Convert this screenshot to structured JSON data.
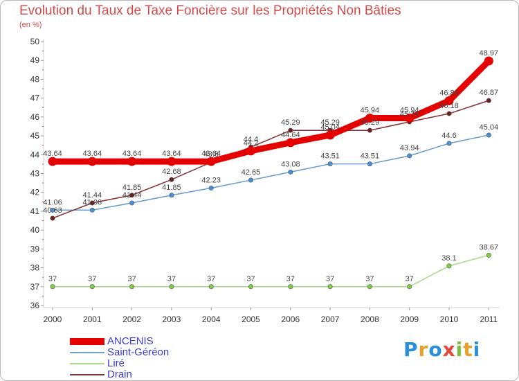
{
  "header": {
    "title": "Evolution du Taux de Taxe Foncière sur les Propriétés Non Bâties",
    "unit": "(en %)"
  },
  "colors": {
    "title": "#d44a4a",
    "legend_text": "#3b3bd6",
    "axis": "#d0d0d0"
  },
  "logo": {
    "text": "Proxiti"
  },
  "chart_data": {
    "type": "line",
    "title": "Evolution du Taux de Taxe Foncière sur les Propriétés Non Bâties",
    "ylabel": "(en %)",
    "xlabel": "",
    "x": [
      2000,
      2001,
      2002,
      2003,
      2004,
      2005,
      2006,
      2007,
      2008,
      2009,
      2010,
      2011
    ],
    "x_labels": [
      "2000",
      "2001",
      "2002",
      "2003",
      "2004",
      "2005",
      "2006",
      "2007",
      "2008",
      "2009",
      "2010",
      "2011"
    ],
    "ylim": [
      36,
      50
    ],
    "yticks": [
      "36",
      "37",
      "38",
      "39",
      "40",
      "41",
      "42",
      "43",
      "44",
      "45",
      "46",
      "47",
      "48",
      "49",
      "50"
    ],
    "grid": false,
    "legend": "bottom-left",
    "series": [
      {
        "name": "ANCENIS",
        "color": "#e50000",
        "point_color": "#e50000",
        "values": [
          43.64,
          43.64,
          43.64,
          43.64,
          43.64,
          44.2,
          44.64,
          45.04,
          45.94,
          45.94,
          46.86,
          48.97
        ],
        "labels": [
          "43.64",
          "43.64",
          "43.64",
          "43.64",
          "43.64",
          "44.2",
          "44.64",
          "45.04",
          "45.94",
          "45.94",
          "46.86",
          "48.97"
        ]
      },
      {
        "name": "Saint-Géréon",
        "color": "#6f9fcb",
        "point_color": "#4a90d9",
        "values": [
          41.06,
          41.06,
          41.44,
          41.85,
          42.23,
          42.65,
          43.08,
          43.51,
          43.51,
          43.94,
          44.6,
          45.04
        ],
        "labels": [
          "41.06",
          "41.06",
          "41.44",
          "41.85",
          "42.23",
          "42.65",
          "43.08",
          "43.51",
          "43.51",
          "43.94",
          "44.6",
          "45.04"
        ]
      },
      {
        "name": "Liré",
        "color": "#a9dc8a",
        "point_color": "#7fcf3f",
        "values": [
          37,
          37,
          37,
          37,
          37,
          37,
          37,
          37,
          37,
          37,
          38.1,
          38.67
        ],
        "labels": [
          "37",
          "37",
          "37",
          "37",
          "37",
          "37",
          "37",
          "37",
          "37",
          "37",
          "38.1",
          "38.67"
        ]
      },
      {
        "name": "Drain",
        "color": "#8a3a3a",
        "point_color": "#6a1f1f",
        "values": [
          40.63,
          41.44,
          41.85,
          42.68,
          43.6,
          44.4,
          45.29,
          45.29,
          45.29,
          45.74,
          46.18,
          46.87
        ],
        "labels": [
          "40.63",
          "41.44",
          "41.85",
          "42.68",
          "43.6",
          "44.4",
          "45.29",
          "45.29",
          "45.29",
          "45.74",
          "46.18",
          "46.87"
        ]
      }
    ]
  }
}
